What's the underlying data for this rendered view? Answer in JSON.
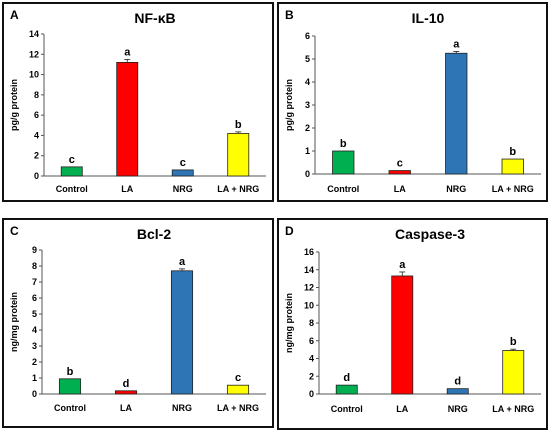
{
  "chart_data": [
    {
      "type": "bar",
      "panel_label": "A",
      "title": "NF-κB",
      "ylabel": "pg/g protein",
      "xlabel": "",
      "categories": [
        "Control",
        "LA",
        "NRG",
        "LA + NRG"
      ],
      "values": [
        0.9,
        11.2,
        0.6,
        4.2
      ],
      "errors": [
        0.0,
        0.3,
        0.0,
        0.15
      ],
      "significance": [
        "c",
        "a",
        "c",
        "b"
      ],
      "colors": [
        "#00b050",
        "#ff0000",
        "#2e75b6",
        "#ffff00"
      ],
      "ylim": [
        0,
        14
      ],
      "yticks": [
        "0",
        "2",
        "4",
        "6",
        "8",
        "10",
        "12",
        "14"
      ],
      "grid": false
    },
    {
      "type": "bar",
      "panel_label": "B",
      "title": "IL-10",
      "ylabel": "pg/g protein",
      "xlabel": "",
      "categories": [
        "Control",
        "LA",
        "NRG",
        "LA + NRG"
      ],
      "values": [
        1.0,
        0.15,
        5.25,
        0.65
      ],
      "errors": [
        0.0,
        0.0,
        0.08,
        0.0
      ],
      "significance": [
        "b",
        "c",
        "a",
        "b"
      ],
      "colors": [
        "#00b050",
        "#ff0000",
        "#2e75b6",
        "#ffff00"
      ],
      "ylim": [
        0,
        6
      ],
      "yticks": [
        "0",
        "1",
        "2",
        "3",
        "4",
        "5",
        "6"
      ],
      "grid": false
    },
    {
      "type": "bar",
      "panel_label": "C",
      "title": "Bcl-2",
      "ylabel": "ng/mg protein",
      "xlabel": "",
      "categories": [
        "Control",
        "LA",
        "NRG",
        "LA + NRG"
      ],
      "values": [
        0.95,
        0.2,
        7.7,
        0.55
      ],
      "errors": [
        0.0,
        0.0,
        0.12,
        0.0
      ],
      "significance": [
        "b",
        "d",
        "a",
        "c"
      ],
      "colors": [
        "#00b050",
        "#ff0000",
        "#2e75b6",
        "#ffff00"
      ],
      "ylim": [
        0,
        9
      ],
      "yticks": [
        "0",
        "1",
        "2",
        "3",
        "4",
        "5",
        "6",
        "7",
        "8",
        "9"
      ],
      "grid": false
    },
    {
      "type": "bar",
      "panel_label": "D",
      "title": "Caspase-3",
      "ylabel": "ng/mg protein",
      "xlabel": "",
      "categories": [
        "Control",
        "LA",
        "NRG",
        "LA + NRG"
      ],
      "values": [
        1.0,
        13.3,
        0.6,
        4.9
      ],
      "errors": [
        0.0,
        0.45,
        0.0,
        0.15
      ],
      "significance": [
        "d",
        "a",
        "d",
        "b"
      ],
      "colors": [
        "#00b050",
        "#ff0000",
        "#2e75b6",
        "#ffff00"
      ],
      "ylim": [
        0,
        16
      ],
      "yticks": [
        "0",
        "2",
        "4",
        "6",
        "8",
        "10",
        "12",
        "14",
        "16"
      ],
      "grid": false
    }
  ]
}
